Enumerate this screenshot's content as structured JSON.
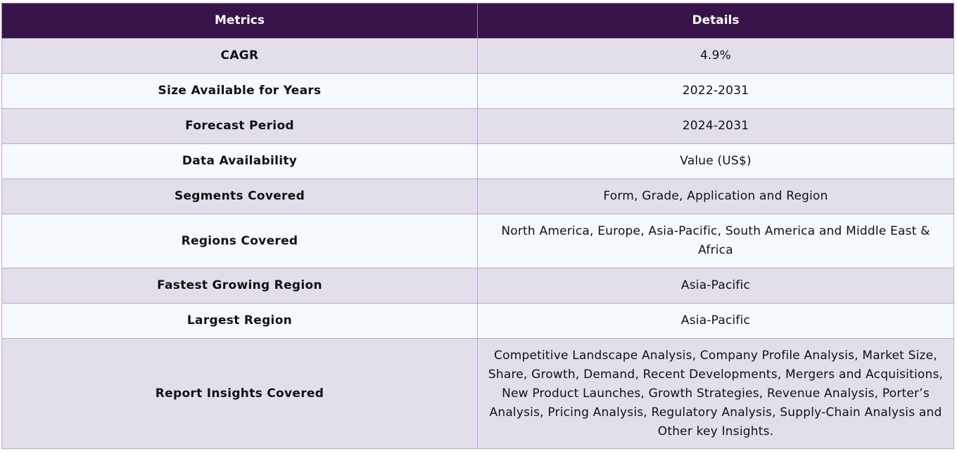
{
  "table": {
    "headers": {
      "metric": "Metrics",
      "details": "Details"
    },
    "rows": [
      {
        "metric": "CAGR",
        "details": "4.9%"
      },
      {
        "metric": "Size Available for Years",
        "details": "2022-2031"
      },
      {
        "metric": "Forecast Period",
        "details": "2024-2031"
      },
      {
        "metric": "Data Availability",
        "details": "Value (US$)"
      },
      {
        "metric": "Segments Covered",
        "details": "Form, Grade, Application and Region"
      },
      {
        "metric": "Regions Covered",
        "details": "North America, Europe, Asia-Pacific, South America and Middle East & Africa"
      },
      {
        "metric": "Fastest Growing Region",
        "details": "Asia-Pacific"
      },
      {
        "metric": "Largest Region",
        "details": "Asia-Pacific"
      },
      {
        "metric": "Report Insights Covered",
        "details": "Competitive Landscape Analysis, Company Profile Analysis, Market Size, Share, Growth, Demand, Recent Developments, Mergers and Acquisitions, New Product Launches, Growth Strategies, Revenue Analysis, Porter’s Analysis, Pricing Analysis, Regulatory Analysis, Supply-Chain Analysis and Other key Insights."
      }
    ]
  },
  "colors": {
    "header_bg": "#371349",
    "odd_row_bg": "#e2dfea",
    "even_row_bg": "#f4fafd",
    "border": "#b7aacd"
  }
}
